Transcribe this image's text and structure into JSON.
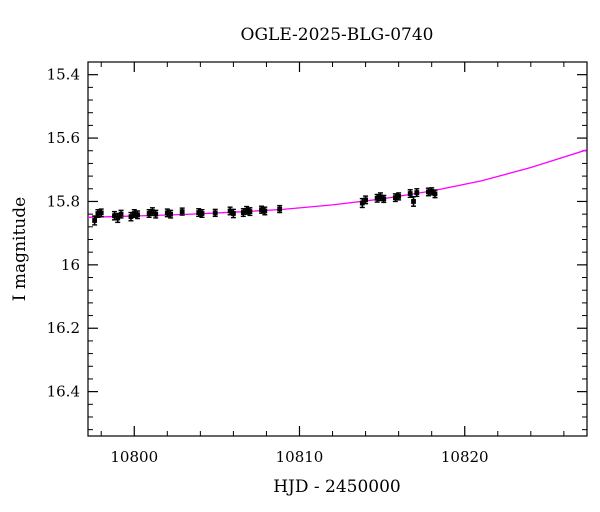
{
  "chart_data": {
    "type": "scatter",
    "title": "OGLE-2025-BLG-0740",
    "xlabel": "HJD - 2450000",
    "ylabel": "I magnitude",
    "xlim": [
      10797.2,
      10827.4
    ],
    "ylim": [
      16.54,
      15.36
    ],
    "y_inverted": true,
    "x_ticks": [
      10800,
      10810,
      10820
    ],
    "y_ticks": [
      15.4,
      15.6,
      15.8,
      16,
      16.2,
      16.4
    ],
    "x_tick_labels": [
      "10800",
      "10810",
      "10820"
    ],
    "y_tick_labels": [
      "15.4",
      "15.6",
      "15.8",
      "16",
      "16.2",
      "16.4"
    ],
    "grid": false,
    "legend": "none",
    "colors": {
      "points": "#000000",
      "model": "#ff00ff"
    },
    "series": [
      {
        "kind": "points_with_errorbars",
        "points": [
          {
            "x": 10797.6,
            "y": 15.86,
            "err": 0.014
          },
          {
            "x": 10797.8,
            "y": 15.838,
            "err": 0.012
          },
          {
            "x": 10798.0,
            "y": 15.836,
            "err": 0.012
          },
          {
            "x": 10798.8,
            "y": 15.845,
            "err": 0.013
          },
          {
            "x": 10799.0,
            "y": 15.852,
            "err": 0.014
          },
          {
            "x": 10799.2,
            "y": 15.84,
            "err": 0.012
          },
          {
            "x": 10799.8,
            "y": 15.848,
            "err": 0.013
          },
          {
            "x": 10800.0,
            "y": 15.838,
            "err": 0.012
          },
          {
            "x": 10800.2,
            "y": 15.842,
            "err": 0.012
          },
          {
            "x": 10800.9,
            "y": 15.838,
            "err": 0.012
          },
          {
            "x": 10801.1,
            "y": 15.832,
            "err": 0.012
          },
          {
            "x": 10801.3,
            "y": 15.84,
            "err": 0.012
          },
          {
            "x": 10802.0,
            "y": 15.836,
            "err": 0.012
          },
          {
            "x": 10802.2,
            "y": 15.84,
            "err": 0.012
          },
          {
            "x": 10802.9,
            "y": 15.832,
            "err": 0.011
          },
          {
            "x": 10803.9,
            "y": 15.835,
            "err": 0.012
          },
          {
            "x": 10804.1,
            "y": 15.838,
            "err": 0.012
          },
          {
            "x": 10804.9,
            "y": 15.836,
            "err": 0.011
          },
          {
            "x": 10805.8,
            "y": 15.83,
            "err": 0.012
          },
          {
            "x": 10806.0,
            "y": 15.838,
            "err": 0.013
          },
          {
            "x": 10806.6,
            "y": 15.835,
            "err": 0.012
          },
          {
            "x": 10806.8,
            "y": 15.828,
            "err": 0.012
          },
          {
            "x": 10807.0,
            "y": 15.832,
            "err": 0.012
          },
          {
            "x": 10807.7,
            "y": 15.826,
            "err": 0.011
          },
          {
            "x": 10807.9,
            "y": 15.83,
            "err": 0.012
          },
          {
            "x": 10808.8,
            "y": 15.824,
            "err": 0.011
          },
          {
            "x": 10813.8,
            "y": 15.805,
            "err": 0.014
          },
          {
            "x": 10814.0,
            "y": 15.795,
            "err": 0.012
          },
          {
            "x": 10814.7,
            "y": 15.79,
            "err": 0.012
          },
          {
            "x": 10814.9,
            "y": 15.785,
            "err": 0.012
          },
          {
            "x": 10815.1,
            "y": 15.792,
            "err": 0.011
          },
          {
            "x": 10815.8,
            "y": 15.788,
            "err": 0.012
          },
          {
            "x": 10816.0,
            "y": 15.784,
            "err": 0.011
          },
          {
            "x": 10816.7,
            "y": 15.775,
            "err": 0.012
          },
          {
            "x": 10816.9,
            "y": 15.8,
            "err": 0.015
          },
          {
            "x": 10817.1,
            "y": 15.772,
            "err": 0.012
          },
          {
            "x": 10817.8,
            "y": 15.77,
            "err": 0.012
          },
          {
            "x": 10818.0,
            "y": 15.768,
            "err": 0.011
          },
          {
            "x": 10818.2,
            "y": 15.776,
            "err": 0.012
          }
        ]
      },
      {
        "kind": "model_curve",
        "x": [
          10797.2,
          10800,
          10803,
          10806,
          10809,
          10812,
          10815,
          10818,
          10821,
          10824,
          10827.4
        ],
        "y": [
          15.85,
          15.846,
          15.841,
          15.834,
          15.825,
          15.811,
          15.792,
          15.767,
          15.735,
          15.693,
          15.637
        ]
      }
    ]
  }
}
